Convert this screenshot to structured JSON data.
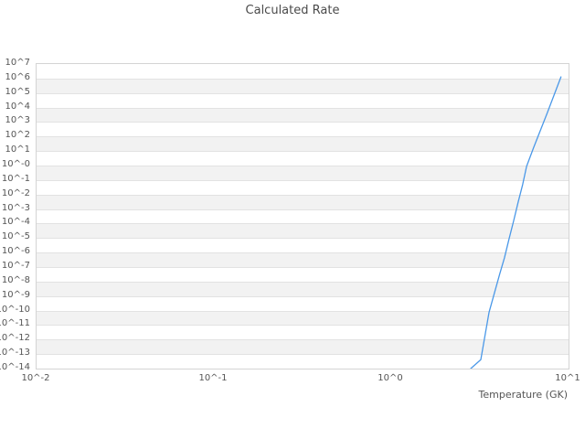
{
  "title": "Calculated Rate",
  "colors": {
    "line": "#4a98e8",
    "band_fill": "#f2f2f2",
    "gridline": "#e2e2e2",
    "plot_border": "#d4d4d4",
    "tick_text": "#555555",
    "title_text": "#4a4a4a"
  },
  "chart_data": {
    "type": "line",
    "title": "Calculated Rate",
    "xlabel": "Temperature (GK)",
    "ylabel": "",
    "x_scale": "log",
    "y_scale": "log",
    "xlim": [
      0.01,
      10
    ],
    "ylim": [
      1e-14,
      10000000.0
    ],
    "x_tick_labels": [
      "10^-2",
      "10^-1",
      "10^0",
      "10^1"
    ],
    "y_tick_labels": [
      "10^7",
      "10^6",
      "10^5",
      "10^4",
      "10^3",
      "10^2",
      "10^1",
      "10^-0",
      "10^-1",
      "10^-2",
      "10^-3",
      "10^-4",
      "10^-5",
      "10^-6",
      "10^-7",
      "10^-8",
      "10^-9",
      "10^-10",
      "10^-11",
      "10^-12",
      "10^-13",
      "10^-14"
    ],
    "grid": "horizontal alternating bands, white/gray, one per decade",
    "legend": "none",
    "series": [
      {
        "name": "calculated-rate",
        "x": [
          2.81,
          3.2,
          3.56,
          4.09,
          4.35,
          4.61,
          4.9,
          5.19,
          5.51,
          5.8,
          6.34,
          7.58,
          9.06
        ],
        "y": [
          1e-14,
          4.1e-14,
          7.4e-11,
          3.3e-08,
          4.4e-07,
          8.1e-06,
          0.00015,
          0.0027,
          0.049,
          0.88,
          16.0,
          4200.0,
          1300000.0
        ]
      }
    ]
  }
}
